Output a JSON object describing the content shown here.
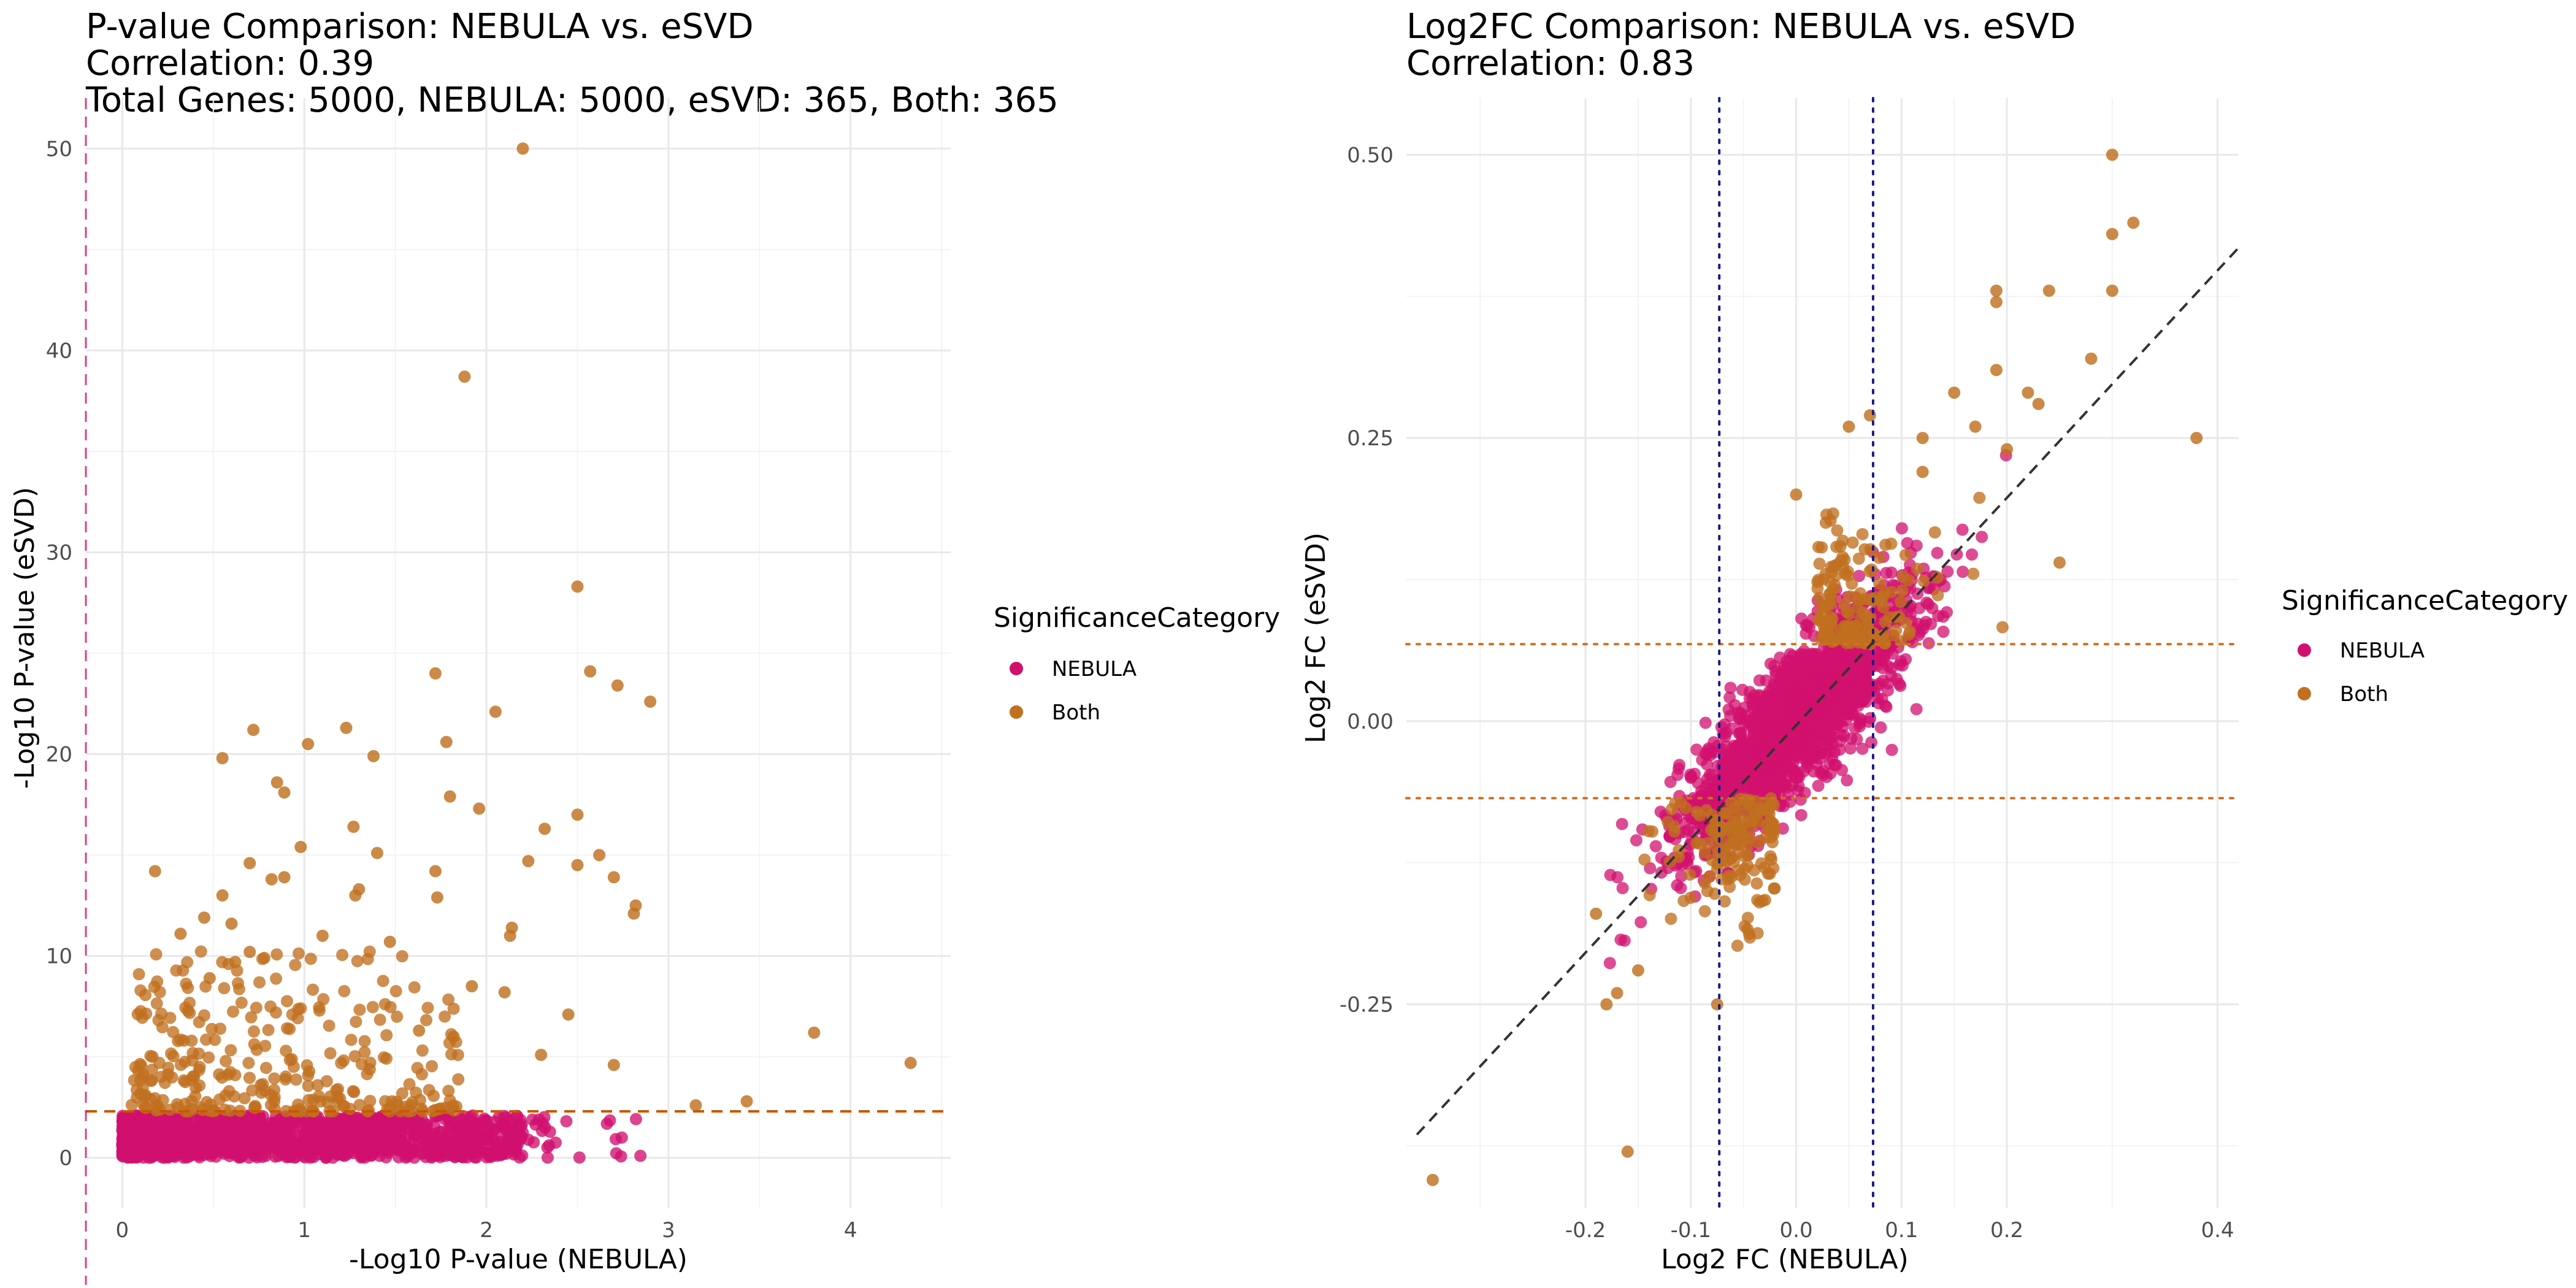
{
  "colors": {
    "nebula": "#D1106E",
    "both": "#C0701F",
    "pthreshold": "#CC5500",
    "vline_left": "#D1106E",
    "fc_h": "#D27020",
    "fc_v": "#1A1A8C",
    "diag": "#333333"
  },
  "legend": {
    "title": "SignificanceCategory",
    "items": [
      "NEBULA",
      "Both"
    ]
  },
  "chart_data": [
    {
      "type": "scatter",
      "title": "P-value Comparison: NEBULA vs. eSVD",
      "subtitle1": "Correlation: 0.39",
      "subtitle2": "Total Genes: 5000, NEBULA: 5000, eSVD: 365, Both: 365",
      "xlabel": "-Log10 P-value (NEBULA)",
      "ylabel": "-Log10 P-value (eSVD)",
      "xlim": [
        -0.2,
        4.55
      ],
      "ylim": [
        -2.5,
        52.5
      ],
      "xticks": [
        0,
        1,
        2,
        3,
        4
      ],
      "yticks": [
        0,
        10,
        20,
        30,
        40,
        50
      ],
      "hline": 2.3,
      "vline": -0.2,
      "series": [
        {
          "name": "NEBULA",
          "color_key": "nebula",
          "generated": true,
          "n": 1400
        },
        {
          "name": "Both",
          "color_key": "both",
          "points": [
            [
              2.2,
              50.0
            ],
            [
              1.88,
              38.7
            ],
            [
              2.5,
              28.3
            ],
            [
              1.72,
              24.0
            ],
            [
              2.57,
              24.1
            ],
            [
              2.72,
              23.4
            ],
            [
              2.9,
              22.6
            ],
            [
              2.05,
              22.1
            ],
            [
              1.23,
              21.3
            ],
            [
              0.72,
              21.2
            ],
            [
              1.02,
              20.5
            ],
            [
              1.78,
              20.6
            ],
            [
              1.38,
              19.9
            ],
            [
              0.55,
              19.8
            ],
            [
              1.96,
              17.3
            ],
            [
              0.85,
              18.6
            ],
            [
              0.89,
              18.1
            ],
            [
              1.8,
              17.9
            ],
            [
              2.5,
              17.0
            ],
            [
              1.27,
              16.4
            ],
            [
              2.32,
              16.3
            ],
            [
              0.98,
              15.4
            ],
            [
              2.23,
              14.7
            ],
            [
              2.5,
              14.5
            ],
            [
              2.62,
              15.0
            ],
            [
              0.18,
              14.2
            ],
            [
              0.7,
              14.6
            ],
            [
              1.4,
              15.1
            ],
            [
              1.72,
              14.2
            ],
            [
              2.7,
              13.9
            ],
            [
              0.82,
              13.8
            ],
            [
              0.89,
              13.9
            ],
            [
              1.3,
              13.3
            ],
            [
              0.55,
              13.0
            ],
            [
              1.28,
              13.0
            ],
            [
              1.73,
              12.9
            ],
            [
              2.82,
              12.5
            ],
            [
              2.81,
              12.1
            ],
            [
              0.45,
              11.9
            ],
            [
              0.6,
              11.6
            ],
            [
              0.32,
              11.1
            ],
            [
              2.14,
              11.4
            ],
            [
              2.13,
              11.0
            ],
            [
              1.1,
              11.0
            ],
            [
              1.47,
              10.7
            ],
            [
              0.7,
              10.2
            ],
            [
              0.78,
              9.9
            ],
            [
              0.48,
              8.9
            ],
            [
              0.62,
              9.7
            ],
            [
              1.92,
              8.5
            ],
            [
              2.1,
              8.2
            ],
            [
              3.8,
              6.2
            ],
            [
              2.45,
              7.1
            ],
            [
              4.33,
              4.7
            ],
            [
              3.43,
              2.8
            ],
            [
              3.15,
              2.6
            ],
            [
              2.7,
              4.6
            ],
            [
              2.3,
              5.1
            ],
            [
              1.82,
              6.0
            ],
            [
              1.63,
              6.3
            ]
          ],
          "generated_n": 300
        }
      ]
    },
    {
      "type": "scatter",
      "title": "Log2FC Comparison: NEBULA vs. eSVD",
      "subtitle1": "Correlation: 0.83",
      "xlabel": "Log2 FC (NEBULA)",
      "ylabel": "Log2 FC (eSVD)",
      "xlim": [
        -0.37,
        0.42
      ],
      "ylim": [
        -0.43,
        0.55
      ],
      "xticks": [
        -0.2,
        -0.1,
        0.0,
        0.1,
        0.2,
        0.4
      ],
      "xticklabels": [
        "-0.2",
        "-0.1",
        "0.0",
        "0.1",
        "0.2",
        "0.4"
      ],
      "xtick_positions": [
        -0.2,
        -0.1,
        0.0,
        0.1,
        0.2,
        0.4
      ],
      "yticks": [
        -0.25,
        0.0,
        0.25,
        0.5
      ],
      "yticklabels": [
        "-0.25",
        "0.00",
        "0.25",
        "0.50"
      ],
      "hlines": [
        0.068,
        -0.068
      ],
      "vlines": [
        -0.073,
        0.073
      ],
      "series": [
        {
          "name": "NEBULA",
          "color_key": "nebula",
          "generated": true,
          "n": 1800
        },
        {
          "name": "Both",
          "color_key": "both",
          "points": [
            [
              0.3,
              0.5
            ],
            [
              0.3,
              0.43
            ],
            [
              0.32,
              0.44
            ],
            [
              0.19,
              0.38
            ],
            [
              0.19,
              0.37
            ],
            [
              0.3,
              0.38
            ],
            [
              0.24,
              0.38
            ],
            [
              0.38,
              0.25
            ],
            [
              0.28,
              0.32
            ],
            [
              0.19,
              0.31
            ],
            [
              0.22,
              0.29
            ],
            [
              0.23,
              0.28
            ],
            [
              0.25,
              0.14
            ],
            [
              0.07,
              0.27
            ],
            [
              0.05,
              0.26
            ],
            [
              0.15,
              0.29
            ],
            [
              0.12,
              0.25
            ],
            [
              -0.345,
              -0.405
            ],
            [
              -0.16,
              -0.38
            ],
            [
              -0.075,
              -0.25
            ],
            [
              -0.19,
              -0.17
            ],
            [
              -0.18,
              -0.25
            ],
            [
              -0.15,
              -0.22
            ],
            [
              -0.17,
              -0.24
            ],
            [
              0.0,
              0.2
            ],
            [
              0.12,
              0.22
            ],
            [
              0.17,
              0.26
            ],
            [
              0.2,
              0.24
            ]
          ],
          "generated_n": 300
        }
      ]
    }
  ]
}
